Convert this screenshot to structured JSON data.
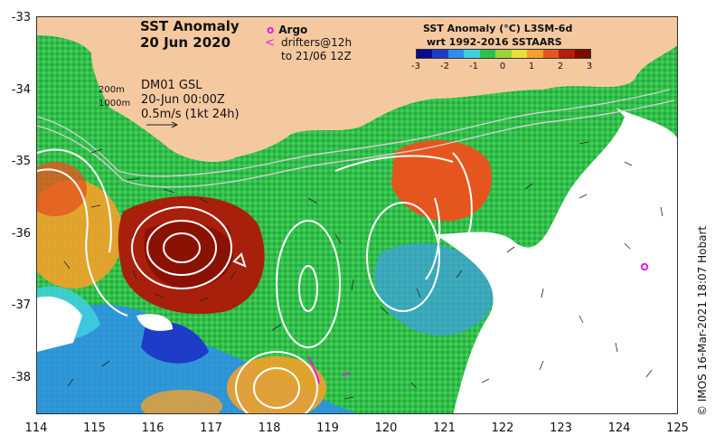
{
  "title": {
    "line1": "SST Anomaly",
    "line2": "20 Jun 2020"
  },
  "legend": {
    "argo_marker": "o",
    "argo_label": "Argo",
    "drifter_marker": "<",
    "drifter_line1": "drifters@12h",
    "drifter_line2": "to 21/06 12Z"
  },
  "colorbar": {
    "title_line1": "SST Anomaly (°C) L3SM-6d",
    "title_line2": "wrt 1992-2016 SSTAARS",
    "ticks": [
      "-3",
      "-2",
      "-1",
      "0",
      "1",
      "2",
      "3"
    ],
    "colors": [
      "#0a0a8c",
      "#1e3cc8",
      "#2e8ef0",
      "#3fd0e0",
      "#2ec24a",
      "#9bd43a",
      "#e8e03a",
      "#f3a12a",
      "#e5561e",
      "#b41e0a",
      "#7a0a00"
    ]
  },
  "info": {
    "isobath_shallow": "200m",
    "isobath_deep": "1000m",
    "model_name": "DM01 GSL",
    "model_time": "20-Jun 00:00Z",
    "scale_vector": "0.5m/s (1kt 24h)"
  },
  "axes": {
    "y_ticks": [
      "-33",
      "-34",
      "-35",
      "-36",
      "-37",
      "-38"
    ],
    "x_ticks": [
      "114",
      "115",
      "116",
      "117",
      "118",
      "119",
      "120",
      "121",
      "122",
      "123",
      "124",
      "125"
    ]
  },
  "credit": "© IMOS 16-Mar-2021 18:07 Hobart",
  "colors": {
    "land": "#f5c9a0",
    "contour": "#ffffff",
    "argo": "#e020e0",
    "drifter": "#e020e0"
  }
}
